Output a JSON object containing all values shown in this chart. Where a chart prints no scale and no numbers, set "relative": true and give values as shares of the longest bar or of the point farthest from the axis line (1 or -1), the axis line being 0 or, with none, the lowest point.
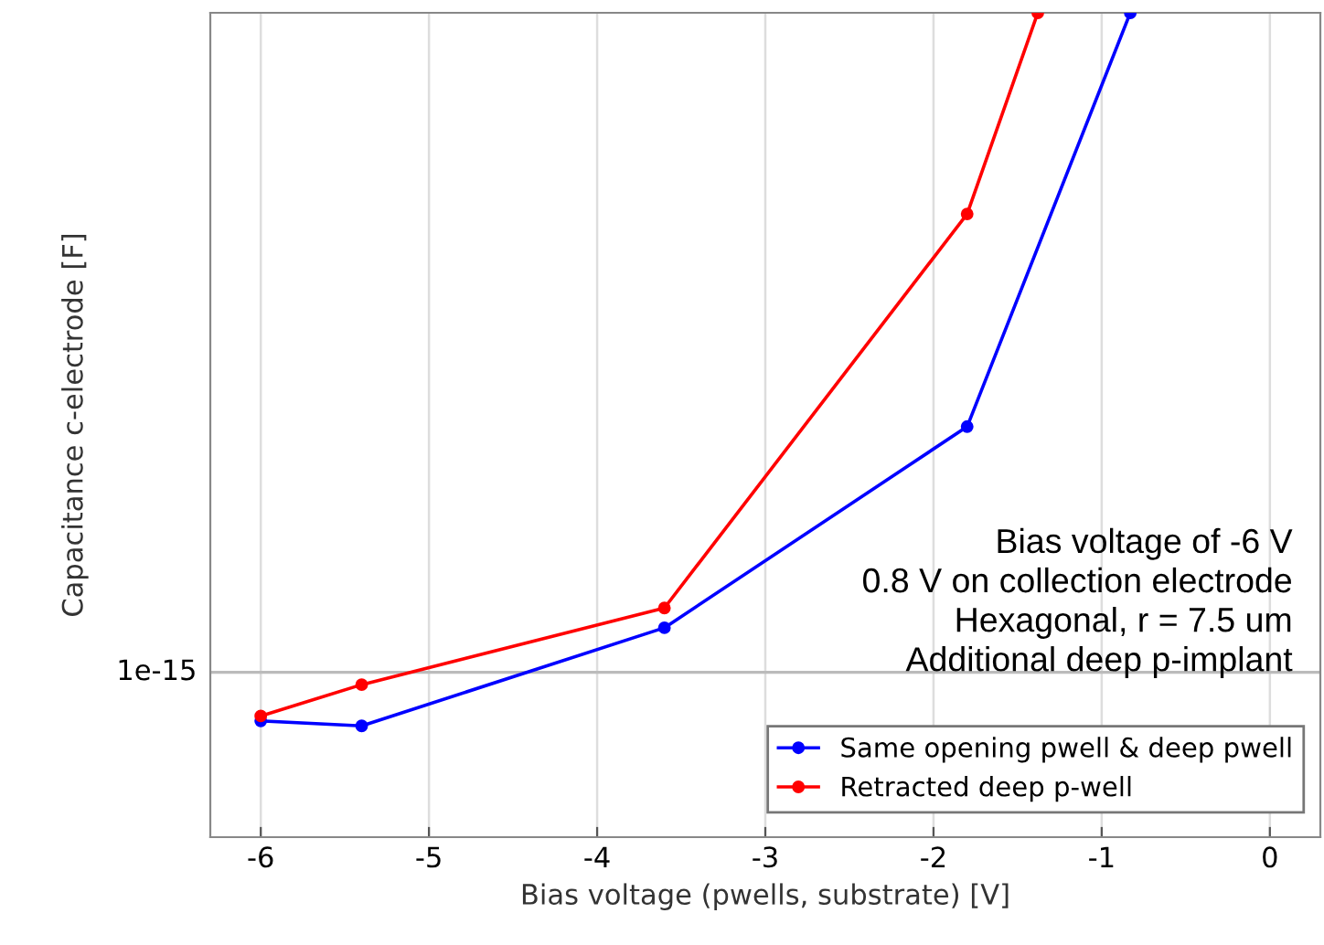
{
  "chart_data": {
    "type": "line",
    "xlabel": "Bias voltage (pwells, substrate) [V]",
    "ylabel": "Capacitance c-electrode [F]",
    "series": [
      {
        "name": "Same opening pwell & deep pwell",
        "color": "#0000ff",
        "x": [
          -6,
          -5.4,
          -3.6,
          -1.8,
          -0.83
        ],
        "values": [
          0.141,
          0.135,
          0.254,
          0.498,
          1
        ]
      },
      {
        "name": "Retracted deep p-well",
        "color": "#ff0000",
        "x": [
          -6,
          -5.4,
          -3.6,
          -1.8,
          -1.38
        ],
        "values": [
          0.147,
          0.185,
          0.278,
          0.756,
          1
        ]
      }
    ],
    "relative": true,
    "xlim": [
      -6.3,
      0.3
    ],
    "xticks": [
      -6,
      -5,
      -4,
      -3,
      -2,
      -1,
      0
    ],
    "ref_lines": [
      {
        "axis": "y",
        "value": 0.2,
        "label": "1e-15",
        "color": "#bbbbbb"
      }
    ],
    "grid": "x",
    "legend": "bottom right",
    "marker": "circle",
    "line_style": "solid",
    "annotations": [
      "Bias voltage of -6 V",
      "0.8 V on collection electrode",
      "Hexagonal, r = 7.5 um",
      "Additional deep p-implant"
    ]
  }
}
